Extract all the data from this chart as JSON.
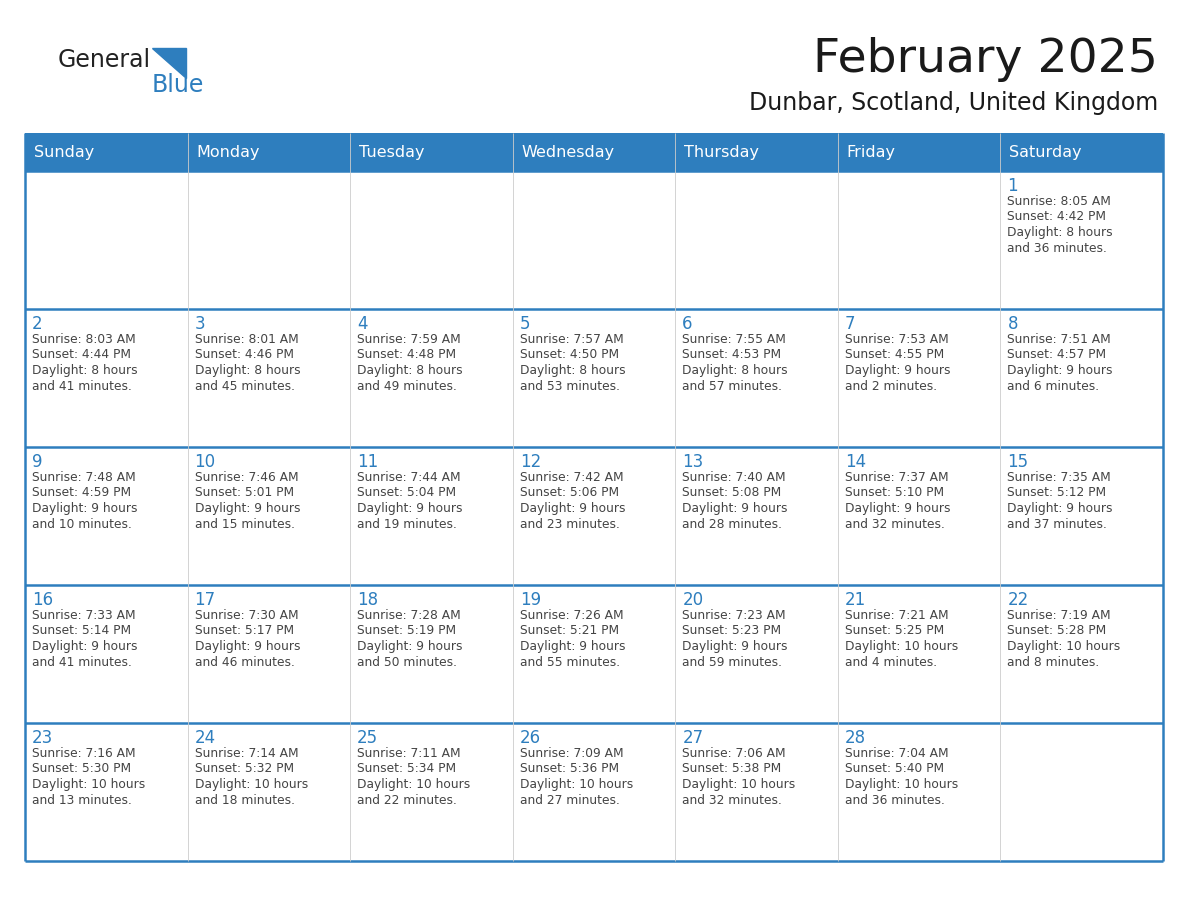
{
  "title": "February 2025",
  "subtitle": "Dunbar, Scotland, United Kingdom",
  "days_of_week": [
    "Sunday",
    "Monday",
    "Tuesday",
    "Wednesday",
    "Thursday",
    "Friday",
    "Saturday"
  ],
  "header_bg": "#2E7EBE",
  "header_text": "#FFFFFF",
  "cell_bg": "#FFFFFF",
  "grid_color": "#2E7EBE",
  "day_number_color": "#2E7EBE",
  "text_color": "#444444",
  "title_color": "#1a1a1a",
  "weeks": [
    [
      {
        "date": "",
        "sunrise": "",
        "sunset": "",
        "daylight": ""
      },
      {
        "date": "",
        "sunrise": "",
        "sunset": "",
        "daylight": ""
      },
      {
        "date": "",
        "sunrise": "",
        "sunset": "",
        "daylight": ""
      },
      {
        "date": "",
        "sunrise": "",
        "sunset": "",
        "daylight": ""
      },
      {
        "date": "",
        "sunrise": "",
        "sunset": "",
        "daylight": ""
      },
      {
        "date": "",
        "sunrise": "",
        "sunset": "",
        "daylight": ""
      },
      {
        "date": "1",
        "sunrise": "8:05 AM",
        "sunset": "4:42 PM",
        "daylight": "8 hours\nand 36 minutes."
      }
    ],
    [
      {
        "date": "2",
        "sunrise": "8:03 AM",
        "sunset": "4:44 PM",
        "daylight": "8 hours\nand 41 minutes."
      },
      {
        "date": "3",
        "sunrise": "8:01 AM",
        "sunset": "4:46 PM",
        "daylight": "8 hours\nand 45 minutes."
      },
      {
        "date": "4",
        "sunrise": "7:59 AM",
        "sunset": "4:48 PM",
        "daylight": "8 hours\nand 49 minutes."
      },
      {
        "date": "5",
        "sunrise": "7:57 AM",
        "sunset": "4:50 PM",
        "daylight": "8 hours\nand 53 minutes."
      },
      {
        "date": "6",
        "sunrise": "7:55 AM",
        "sunset": "4:53 PM",
        "daylight": "8 hours\nand 57 minutes."
      },
      {
        "date": "7",
        "sunrise": "7:53 AM",
        "sunset": "4:55 PM",
        "daylight": "9 hours\nand 2 minutes."
      },
      {
        "date": "8",
        "sunrise": "7:51 AM",
        "sunset": "4:57 PM",
        "daylight": "9 hours\nand 6 minutes."
      }
    ],
    [
      {
        "date": "9",
        "sunrise": "7:48 AM",
        "sunset": "4:59 PM",
        "daylight": "9 hours\nand 10 minutes."
      },
      {
        "date": "10",
        "sunrise": "7:46 AM",
        "sunset": "5:01 PM",
        "daylight": "9 hours\nand 15 minutes."
      },
      {
        "date": "11",
        "sunrise": "7:44 AM",
        "sunset": "5:04 PM",
        "daylight": "9 hours\nand 19 minutes."
      },
      {
        "date": "12",
        "sunrise": "7:42 AM",
        "sunset": "5:06 PM",
        "daylight": "9 hours\nand 23 minutes."
      },
      {
        "date": "13",
        "sunrise": "7:40 AM",
        "sunset": "5:08 PM",
        "daylight": "9 hours\nand 28 minutes."
      },
      {
        "date": "14",
        "sunrise": "7:37 AM",
        "sunset": "5:10 PM",
        "daylight": "9 hours\nand 32 minutes."
      },
      {
        "date": "15",
        "sunrise": "7:35 AM",
        "sunset": "5:12 PM",
        "daylight": "9 hours\nand 37 minutes."
      }
    ],
    [
      {
        "date": "16",
        "sunrise": "7:33 AM",
        "sunset": "5:14 PM",
        "daylight": "9 hours\nand 41 minutes."
      },
      {
        "date": "17",
        "sunrise": "7:30 AM",
        "sunset": "5:17 PM",
        "daylight": "9 hours\nand 46 minutes."
      },
      {
        "date": "18",
        "sunrise": "7:28 AM",
        "sunset": "5:19 PM",
        "daylight": "9 hours\nand 50 minutes."
      },
      {
        "date": "19",
        "sunrise": "7:26 AM",
        "sunset": "5:21 PM",
        "daylight": "9 hours\nand 55 minutes."
      },
      {
        "date": "20",
        "sunrise": "7:23 AM",
        "sunset": "5:23 PM",
        "daylight": "9 hours\nand 59 minutes."
      },
      {
        "date": "21",
        "sunrise": "7:21 AM",
        "sunset": "5:25 PM",
        "daylight": "10 hours\nand 4 minutes."
      },
      {
        "date": "22",
        "sunrise": "7:19 AM",
        "sunset": "5:28 PM",
        "daylight": "10 hours\nand 8 minutes."
      }
    ],
    [
      {
        "date": "23",
        "sunrise": "7:16 AM",
        "sunset": "5:30 PM",
        "daylight": "10 hours\nand 13 minutes."
      },
      {
        "date": "24",
        "sunrise": "7:14 AM",
        "sunset": "5:32 PM",
        "daylight": "10 hours\nand 18 minutes."
      },
      {
        "date": "25",
        "sunrise": "7:11 AM",
        "sunset": "5:34 PM",
        "daylight": "10 hours\nand 22 minutes."
      },
      {
        "date": "26",
        "sunrise": "7:09 AM",
        "sunset": "5:36 PM",
        "daylight": "10 hours\nand 27 minutes."
      },
      {
        "date": "27",
        "sunrise": "7:06 AM",
        "sunset": "5:38 PM",
        "daylight": "10 hours\nand 32 minutes."
      },
      {
        "date": "28",
        "sunrise": "7:04 AM",
        "sunset": "5:40 PM",
        "daylight": "10 hours\nand 36 minutes."
      },
      {
        "date": "",
        "sunrise": "",
        "sunset": "",
        "daylight": ""
      }
    ]
  ]
}
